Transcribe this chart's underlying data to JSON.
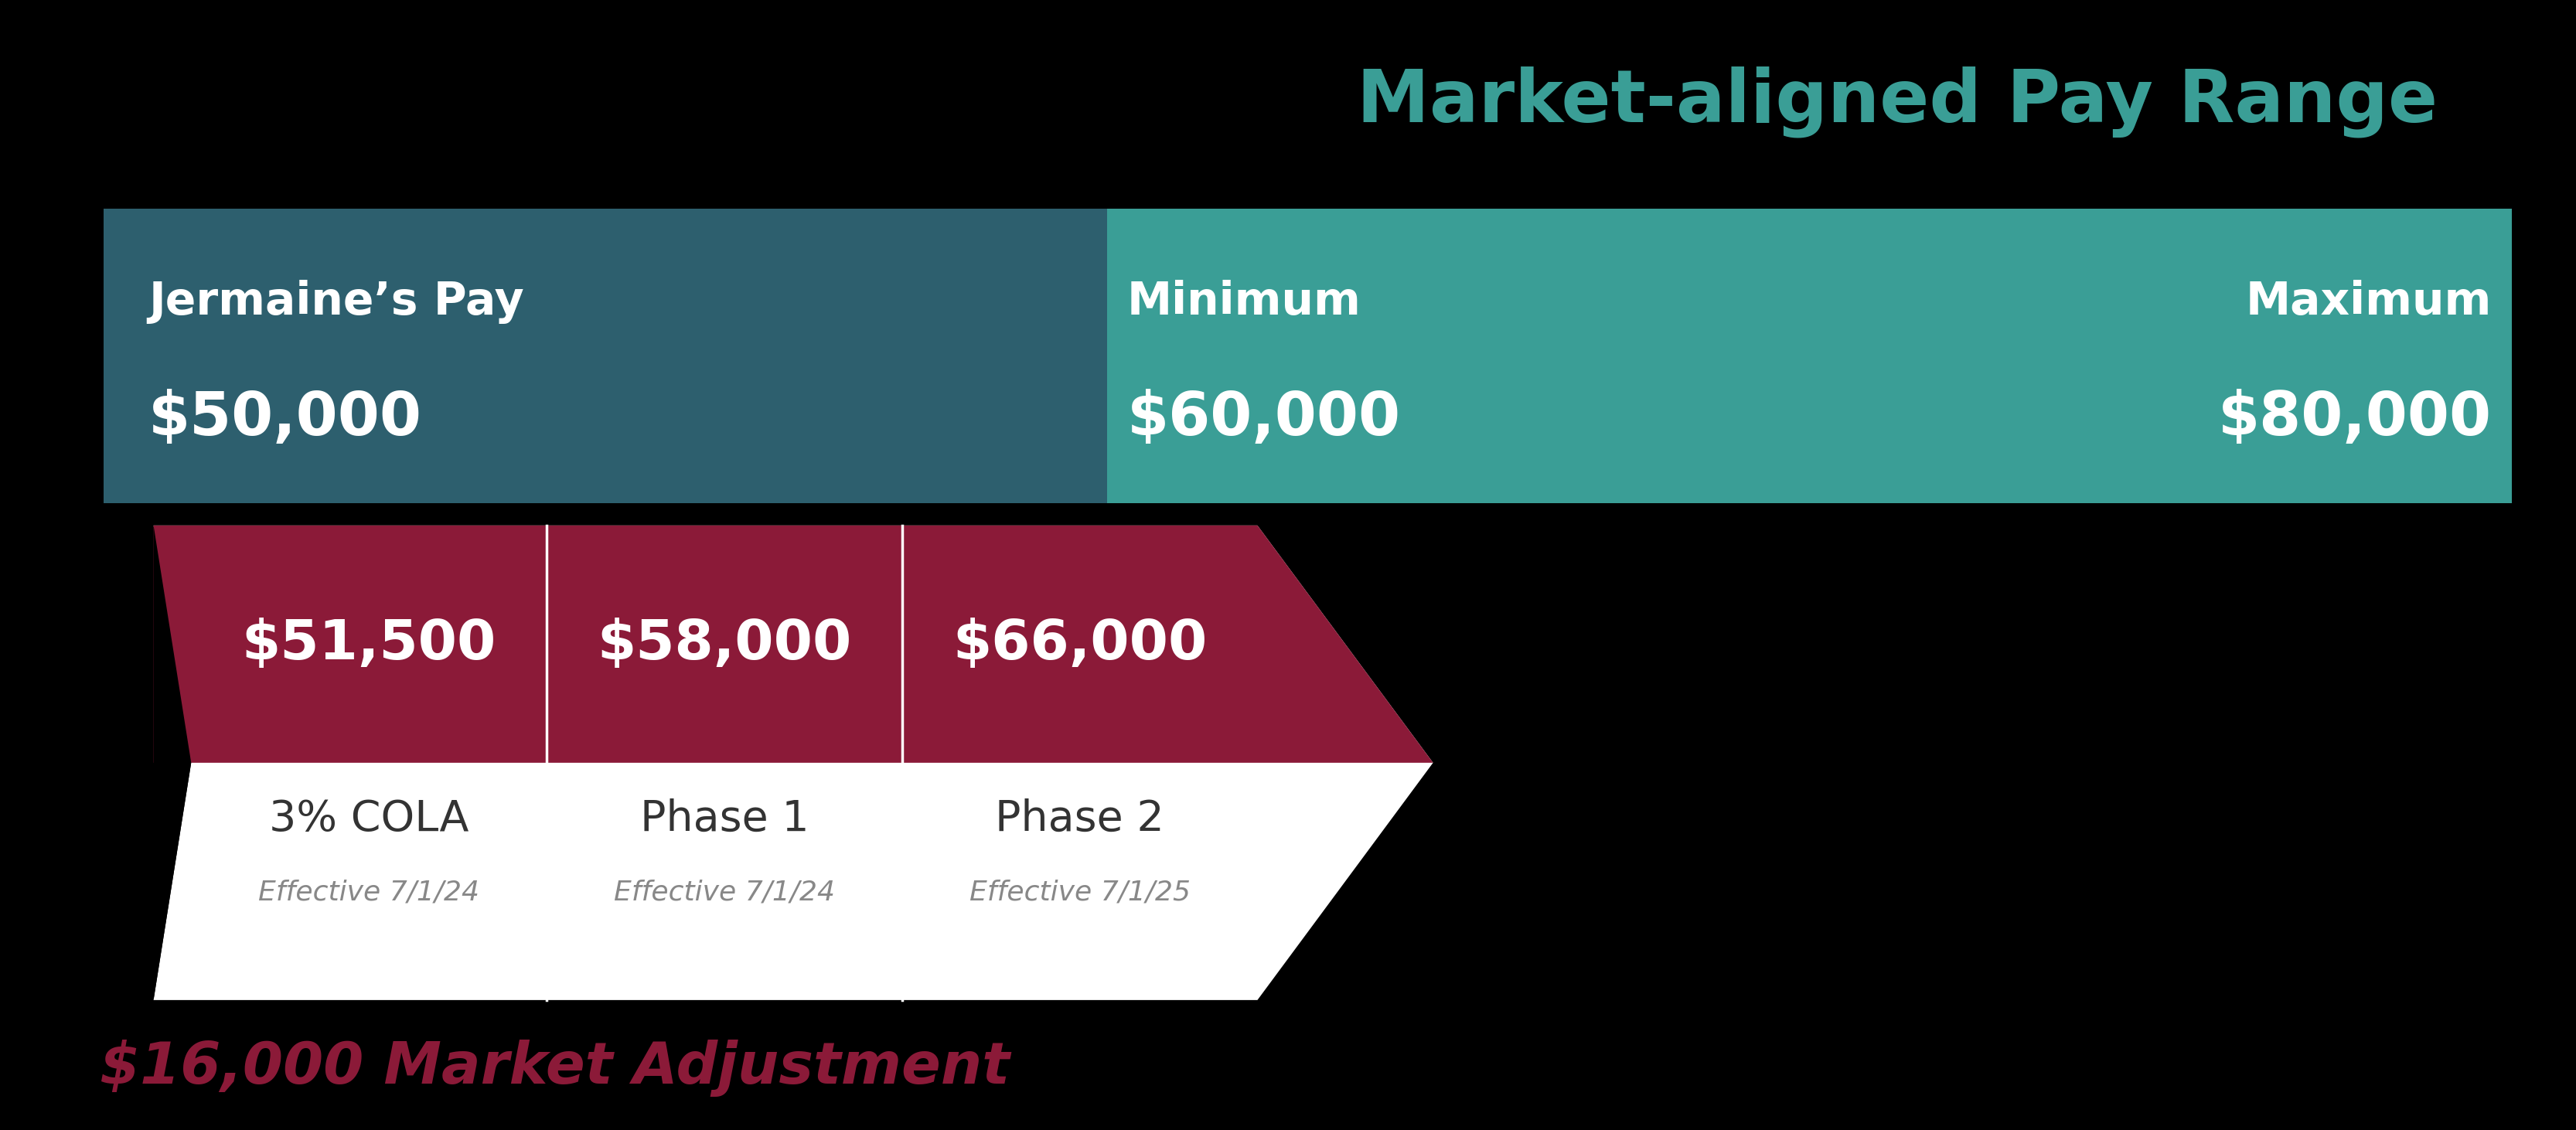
{
  "title": "Market-aligned Pay Range",
  "title_color": "#3a9e96",
  "title_fontsize": 68,
  "background_color": "#000000",
  "dark_teal_color": "#2d5f6e",
  "teal_color": "#3a9e96",
  "crimson_color": "#8b1a38",
  "white_color": "#ffffff",
  "jermaine_label": "Jermaine’s Pay",
  "jermaine_pay": "$50,000",
  "min_label": "Minimum",
  "min_pay": "$60,000",
  "max_label": "Maximum",
  "max_pay": "$80,000",
  "steps": [
    {
      "amount": "$51,500",
      "label": "3% COLA",
      "effective": "Effective 7/1/24"
    },
    {
      "amount": "$58,000",
      "label": "Phase 1",
      "effective": "Effective 7/1/24"
    },
    {
      "amount": "$66,000",
      "label": "Phase 2",
      "effective": "Effective 7/1/25"
    }
  ],
  "market_adj_text": "$16,000 Market Adjustment",
  "market_adj_color": "#8b1a38",
  "fig_width": 33.32,
  "fig_height": 14.62
}
